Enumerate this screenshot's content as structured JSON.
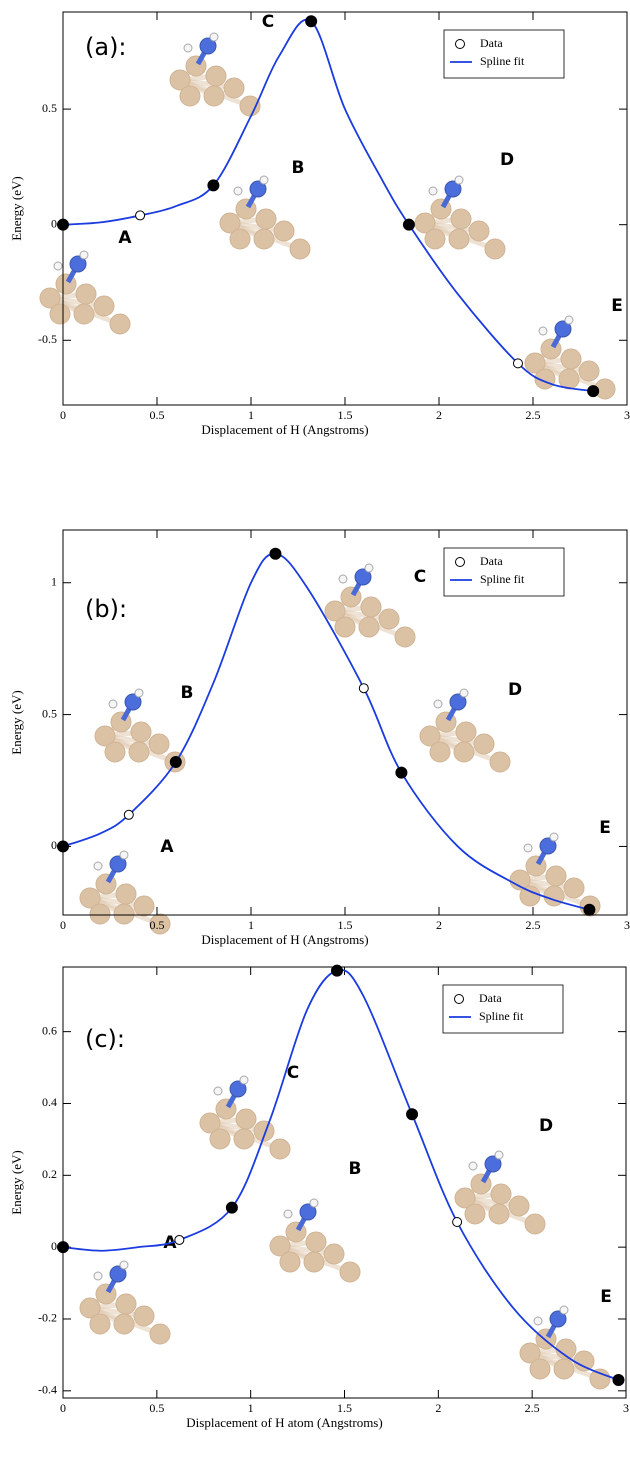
{
  "chart_data": [
    {
      "type": "line",
      "panel_label": "(a):",
      "x_label": "Displacement of H (Angstroms)",
      "y_label": "Energy (eV)",
      "xlim": [
        0,
        3
      ],
      "ylim": [
        -0.78,
        0.92
      ],
      "xticks": [
        0,
        0.5,
        1,
        1.5,
        2,
        2.5,
        3
      ],
      "yticks": [
        -0.5,
        0,
        0.5
      ],
      "legend": "upper right",
      "annotations": [
        "A",
        "B",
        "C",
        "D",
        "E"
      ],
      "series": [
        {
          "name": "Data",
          "kind": "markers",
          "color": "#000000",
          "x": [
            0,
            0.41,
            0.8,
            1.32,
            1.84,
            2.42,
            2.82
          ],
          "values": [
            0,
            0.04,
            0.17,
            0.88,
            0,
            -0.6,
            -0.72
          ],
          "filled": [
            true,
            false,
            true,
            true,
            true,
            false,
            true
          ]
        },
        {
          "name": "Spline fit",
          "kind": "line",
          "color": "#1a3be0",
          "x": [
            0,
            0.2,
            0.41,
            0.6,
            0.8,
            1.0,
            1.15,
            1.32,
            1.5,
            1.7,
            1.84,
            2.1,
            2.42,
            2.6,
            2.82
          ],
          "values": [
            0,
            0.01,
            0.04,
            0.08,
            0.17,
            0.47,
            0.73,
            0.88,
            0.5,
            0.19,
            0,
            -0.3,
            -0.6,
            -0.69,
            -0.72
          ]
        }
      ]
    },
    {
      "type": "line",
      "panel_label": "(b):",
      "x_label": "Displacement of H (Angstroms)",
      "y_label": "Energy (eV)",
      "xlim": [
        0,
        3
      ],
      "ylim": [
        -0.26,
        1.2
      ],
      "xticks": [
        0,
        0.5,
        1,
        1.5,
        2,
        2.5,
        3
      ],
      "yticks": [
        0,
        0.5,
        1
      ],
      "legend": "upper right",
      "annotations": [
        "A",
        "B",
        "C",
        "D",
        "E"
      ],
      "series": [
        {
          "name": "Data",
          "kind": "markers",
          "color": "#000000",
          "x": [
            0,
            0.35,
            0.6,
            1.13,
            1.6,
            1.8,
            2.8
          ],
          "values": [
            0,
            0.12,
            0.32,
            1.11,
            0.6,
            0.28,
            -0.24
          ],
          "filled": [
            true,
            false,
            true,
            true,
            false,
            true,
            true
          ]
        },
        {
          "name": "Spline fit",
          "kind": "line",
          "color": "#1a3be0",
          "x": [
            0,
            0.2,
            0.35,
            0.6,
            0.8,
            1.0,
            1.13,
            1.3,
            1.6,
            1.8,
            2.1,
            2.4,
            2.6,
            2.8
          ],
          "values": [
            0,
            0.05,
            0.12,
            0.32,
            0.62,
            1.0,
            1.11,
            0.98,
            0.6,
            0.28,
            0.0,
            -0.14,
            -0.2,
            -0.24
          ]
        }
      ]
    },
    {
      "type": "line",
      "panel_label": "(c):",
      "x_label": "Displacement of H atom (Angstroms)",
      "y_label": "Energy (eV)",
      "xlim": [
        0,
        3
      ],
      "ylim": [
        -0.42,
        0.78
      ],
      "xticks": [
        0,
        0.5,
        1,
        1.5,
        2,
        2.5,
        3
      ],
      "yticks": [
        -0.4,
        -0.2,
        0,
        0.2,
        0.4,
        0.6
      ],
      "legend": "upper right",
      "annotations": [
        "A",
        "B",
        "C",
        "D",
        "E"
      ],
      "series": [
        {
          "name": "Data",
          "kind": "markers",
          "color": "#000000",
          "x": [
            0,
            0.62,
            0.9,
            1.46,
            1.86,
            2.1,
            2.96
          ],
          "values": [
            0,
            0.02,
            0.11,
            0.77,
            0.37,
            0.07,
            -0.37
          ],
          "filled": [
            true,
            false,
            true,
            true,
            true,
            false,
            true
          ]
        },
        {
          "name": "Spline fit",
          "kind": "line",
          "color": "#1a3be0",
          "x": [
            0,
            0.2,
            0.4,
            0.62,
            0.9,
            1.1,
            1.3,
            1.46,
            1.6,
            1.86,
            2.1,
            2.4,
            2.7,
            2.96
          ],
          "values": [
            0,
            -0.01,
            0.0,
            0.02,
            0.11,
            0.35,
            0.66,
            0.77,
            0.7,
            0.37,
            0.07,
            -0.17,
            -0.31,
            -0.37
          ]
        }
      ]
    }
  ]
}
